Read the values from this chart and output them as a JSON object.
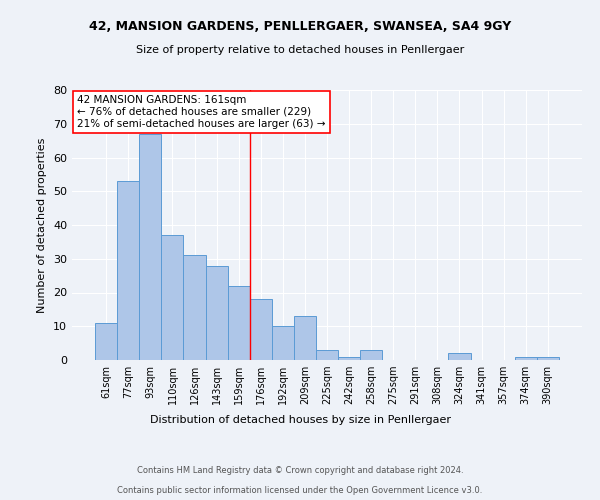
{
  "title": "42, MANSION GARDENS, PENLLERGAER, SWANSEA, SA4 9GY",
  "subtitle": "Size of property relative to detached houses in Penllergaer",
  "xlabel": "Distribution of detached houses by size in Penllergaer",
  "ylabel": "Number of detached properties",
  "categories": [
    "61sqm",
    "77sqm",
    "93sqm",
    "110sqm",
    "126sqm",
    "143sqm",
    "159sqm",
    "176sqm",
    "192sqm",
    "209sqm",
    "225sqm",
    "242sqm",
    "258sqm",
    "275sqm",
    "291sqm",
    "308sqm",
    "324sqm",
    "341sqm",
    "357sqm",
    "374sqm",
    "390sqm"
  ],
  "values": [
    11,
    53,
    67,
    37,
    31,
    28,
    22,
    18,
    10,
    13,
    3,
    1,
    3,
    0,
    0,
    0,
    2,
    0,
    0,
    1,
    1
  ],
  "bar_color": "#aec6e8",
  "bar_edge_color": "#5b9bd5",
  "vline_x": 6.5,
  "vline_color": "red",
  "annotation_text": "42 MANSION GARDENS: 161sqm\n← 76% of detached houses are smaller (229)\n21% of semi-detached houses are larger (63) →",
  "annotation_box_color": "white",
  "annotation_box_edge": "red",
  "ylim": [
    0,
    80
  ],
  "yticks": [
    0,
    10,
    20,
    30,
    40,
    50,
    60,
    70,
    80
  ],
  "footer_line1": "Contains HM Land Registry data © Crown copyright and database right 2024.",
  "footer_line2": "Contains public sector information licensed under the Open Government Licence v3.0.",
  "bg_color": "#eef2f8",
  "plot_bg_color": "#eef2f8",
  "title_fontsize": 9,
  "subtitle_fontsize": 8
}
